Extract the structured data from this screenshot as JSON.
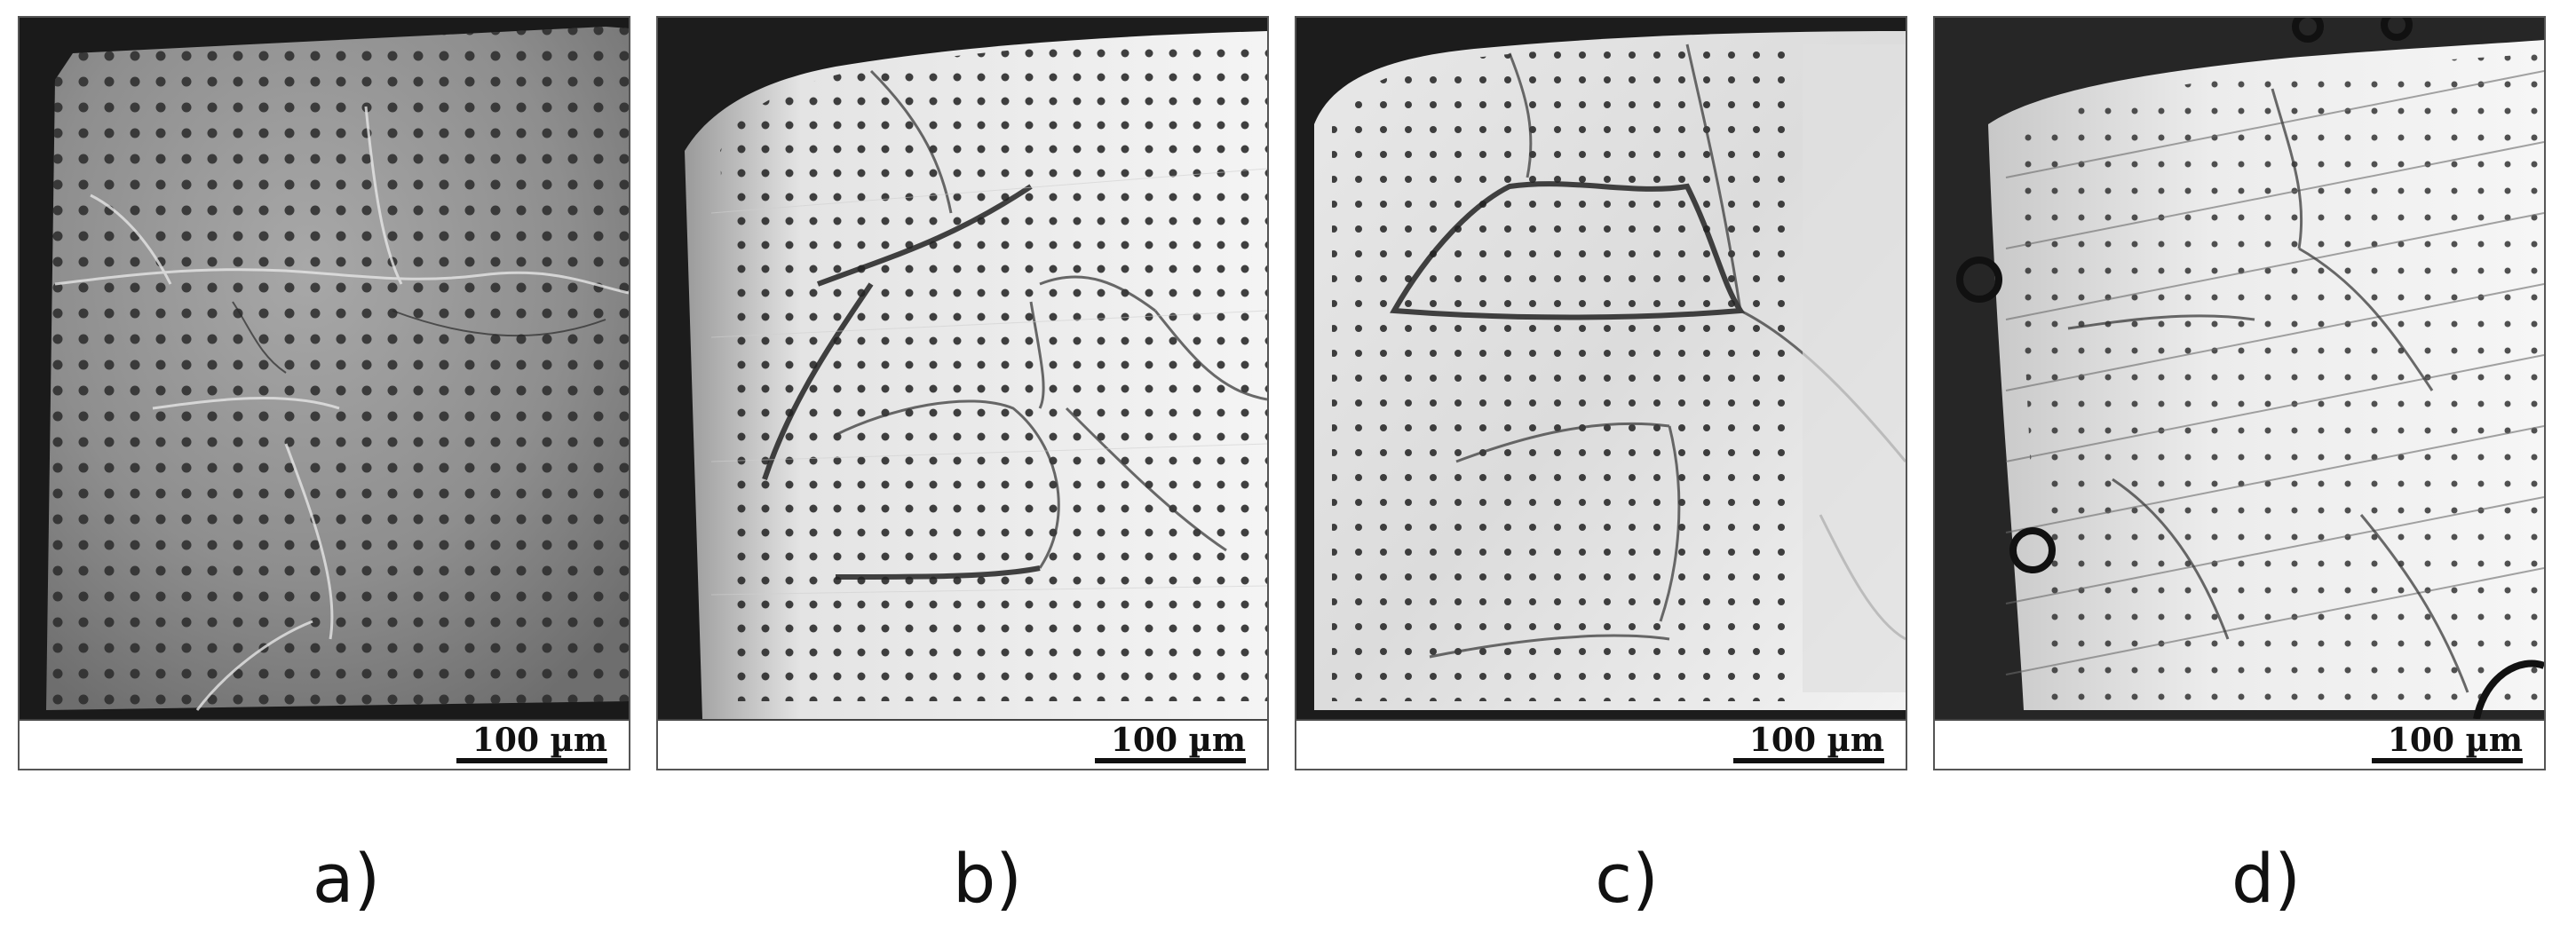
{
  "panels": [
    {
      "id": "a",
      "label": "a)",
      "scale_label": "100 µm",
      "tone": "gray"
    },
    {
      "id": "b",
      "label": "b)",
      "scale_label": "100 µm",
      "tone": "bright"
    },
    {
      "id": "c",
      "label": "c)",
      "scale_label": "100 µm",
      "tone": "bright"
    },
    {
      "id": "d",
      "label": "d)",
      "scale_label": "100 µm",
      "tone": "bright"
    }
  ]
}
